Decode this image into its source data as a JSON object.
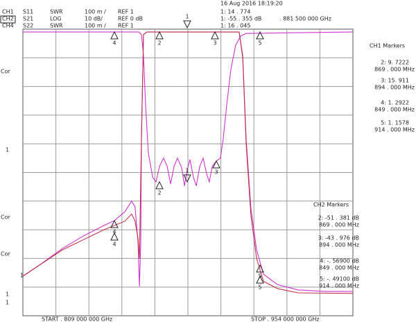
{
  "header": {
    "date": "16 Aug 2016  18:19:20",
    "channels": [
      {
        "ch": "CH1",
        "param": "S11",
        "format": "SWR",
        "scale": "100 m /",
        "ref": "REF 1",
        "readout": "1:  14 . 774"
      },
      {
        "ch": "CH2",
        "param": "S21",
        "format": "LOG",
        "scale": "10 dB/",
        "ref": "REF 0 dB",
        "readout": "1: -55 . 355   dB",
        "freq": ". 881  500  000  GHz"
      },
      {
        "ch": "CH4",
        "param": "S22",
        "format": "SWR",
        "scale": "100 m /",
        "ref": "REF 1",
        "readout": "1:  16 . 045"
      }
    ]
  },
  "left_labels": [
    "Cor",
    "1",
    "Cor",
    "Cor",
    "1",
    "1",
    "1"
  ],
  "marker_ids": [
    "1",
    "2",
    "3",
    "4",
    "5"
  ],
  "ch1_markers": {
    "title": "CH1   Markers",
    "items": [
      {
        "value": "2:  9. 7222",
        "freq": "869 . 000  MHz"
      },
      {
        "value": "3:  15. 911",
        "freq": "894 . 000  MHz"
      },
      {
        "value": "4:  1. 2922",
        "freq": "849 . 000  MHz"
      },
      {
        "value": "5:  1. 1578",
        "freq": "914 . 000  MHz"
      }
    ]
  },
  "ch2_markers": {
    "title": "CH2   Markers",
    "items": [
      {
        "value": "2: -51 . 381  dB",
        "freq": "869 . 000  MHz"
      },
      {
        "value": "3: -43 . 976  dB",
        "freq": "894 . 000  MHz"
      },
      {
        "value": "4: -. 56900  dB",
        "freq": "849 . 000  MHz"
      },
      {
        "value": "5: -. 49100  dB",
        "freq": "914 . 000  MHz"
      }
    ]
  },
  "footer": {
    "start": "START  . 809  000  000  GHz",
    "stop": "STOP  . 954  000  000  GHz"
  },
  "plot": {
    "xlim": [
      809,
      954
    ],
    "ylim": [
      0,
      10
    ],
    "traces": [
      {
        "color": "#cc33cc",
        "x": [
          809.0,
          859.9,
          861.1,
          862.0,
          862.9,
          864.1,
          866.0,
          867.5,
          869.0,
          870.8,
          872.4,
          873.9,
          875.4,
          876.9,
          878.8,
          880.0,
          881.2,
          882.4,
          883.9,
          885.2,
          886.7,
          888.2,
          889.7,
          890.9,
          892.2,
          894.0,
          895.8,
          897.0,
          898.6,
          900.4,
          902.5,
          904.7,
          907.1,
          954.0
        ],
        "y": [
          9.9,
          9.9,
          9.81,
          9.08,
          7.38,
          5.69,
          4.84,
          4.67,
          5.21,
          5.5,
          5.21,
          4.6,
          5.21,
          5.5,
          5.16,
          4.53,
          5.08,
          5.45,
          4.84,
          4.53,
          5.21,
          5.5,
          4.96,
          4.67,
          5.21,
          5.4,
          5.5,
          6.17,
          7.38,
          8.6,
          9.44,
          9.76,
          9.85,
          9.9
        ]
      },
      {
        "color": "#cc33cc",
        "x": [
          809.0,
          817.2,
          826.4,
          835.5,
          844.6,
          849.2,
          853.8,
          856.8,
          858.3,
          859.6,
          860.2,
          860.8,
          861.1,
          862.0,
          863.5,
          904.0,
          905.6,
          907.1,
          909.2,
          911.7,
          914.7,
          920.8,
          929.9,
          942.1,
          954.0
        ],
        "y": [
          1.38,
          1.82,
          2.35,
          2.78,
          3.15,
          3.32,
          3.63,
          4.0,
          3.8,
          2.54,
          1.02,
          2.54,
          6.17,
          9.81,
          9.9,
          9.9,
          9.08,
          6.17,
          3.75,
          2.3,
          1.45,
          1.09,
          0.9,
          0.85,
          0.85
        ]
      },
      {
        "color": "#c0304a",
        "x": [
          809.0,
          826.4,
          844.6,
          853.8,
          856.8,
          858.3,
          859.6,
          860.2,
          861.1,
          862.0,
          863.5,
          904.0,
          905.6,
          907.1,
          909.2,
          911.7,
          914.7,
          920.8,
          929.9,
          954.0
        ],
        "y": [
          1.38,
          2.3,
          3.0,
          3.3,
          3.55,
          3.3,
          2.7,
          2.0,
          6.17,
          9.81,
          9.9,
          9.9,
          9.0,
          6.0,
          3.5,
          2.0,
          1.2,
          0.95,
          0.8,
          0.78
        ]
      }
    ]
  }
}
